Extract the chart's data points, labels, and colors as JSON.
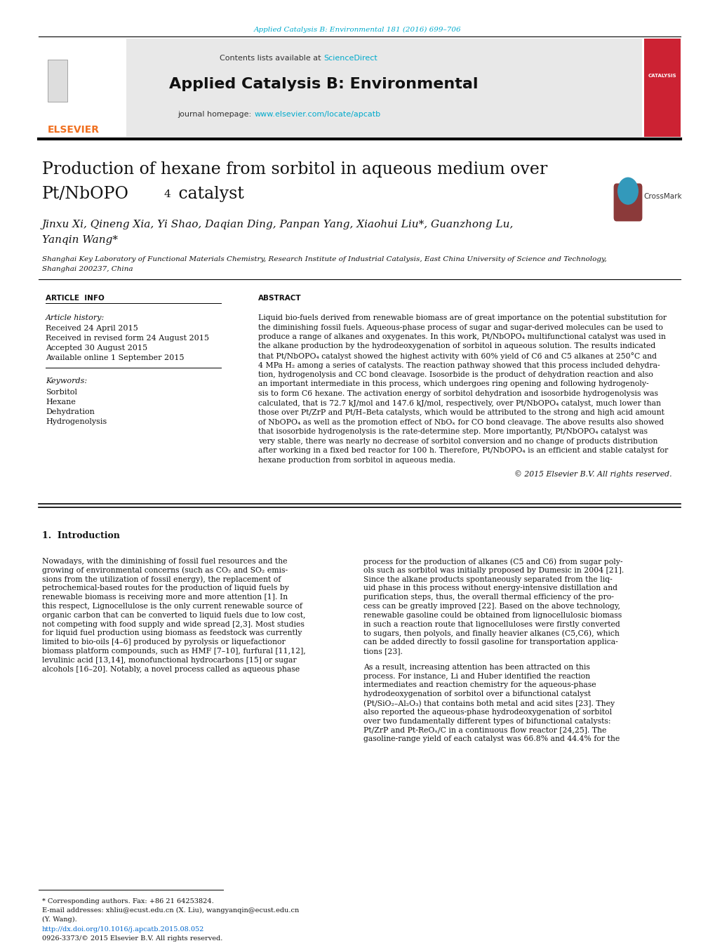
{
  "page_width": 10.2,
  "page_height": 13.51,
  "bg_color": "#ffffff",
  "top_link_text": "Applied Catalysis B: Environmental 181 (2016) 699–706",
  "top_link_color": "#00aacc",
  "header_bg": "#e8e8e8",
  "header_contents_text": "Contents lists available at ",
  "header_sciencedirect": "ScienceDirect",
  "header_sciencedirect_color": "#00aacc",
  "journal_name": "Applied Catalysis B: Environmental",
  "journal_homepage_label": "journal homepage: ",
  "journal_homepage_url": "www.elsevier.com/locate/apcatb",
  "journal_homepage_color": "#00aacc",
  "elsevier_color": "#f07020",
  "article_title_line1": "Production of hexane from sorbitol in aqueous medium over",
  "article_title_line2": "Pt/NbOPO",
  "article_title_sub": "4",
  "article_title_line2_end": " catalyst",
  "authors": "Jinxu Xi, Qineng Xia, Yi Shao, Daqian Ding, Panpan Yang, Xiaohui Liu*, Guanzhong Lu,",
  "authors_line2": "Yanqin Wang*",
  "affiliation": "Shanghai Key Laboratory of Functional Materials Chemistry, Research Institute of Industrial Catalysis, East China University of Science and Technology,",
  "affiliation2": "Shanghai 200237, China",
  "article_info_header": "ARTICLE  INFO",
  "abstract_header": "ABSTRACT",
  "article_history_label": "Article history:",
  "received_date": "Received 24 April 2015",
  "received_revised": "Received in revised form 24 August 2015",
  "accepted": "Accepted 30 August 2015",
  "available": "Available online 1 September 2015",
  "keywords_label": "Keywords:",
  "keywords": [
    "Sorbitol",
    "Hexane",
    "Dehydration",
    "Hydrogenolysis"
  ],
  "copyright_text": "© 2015 Elsevier B.V. All rights reserved.",
  "section1_header": "1.  Introduction",
  "footnote_star": "* Corresponding authors. Fax: +86 21 64253824.",
  "footnote_email": "E-mail addresses: xhliu@ecust.edu.cn (X. Liu), wangyanqin@ecust.edu.cn",
  "footnote_email2": "(Y. Wang).",
  "footnote_doi": "http://dx.doi.org/10.1016/j.apcatb.2015.08.052",
  "footnote_issn": "0926-3373/© 2015 Elsevier B.V. All rights reserved."
}
